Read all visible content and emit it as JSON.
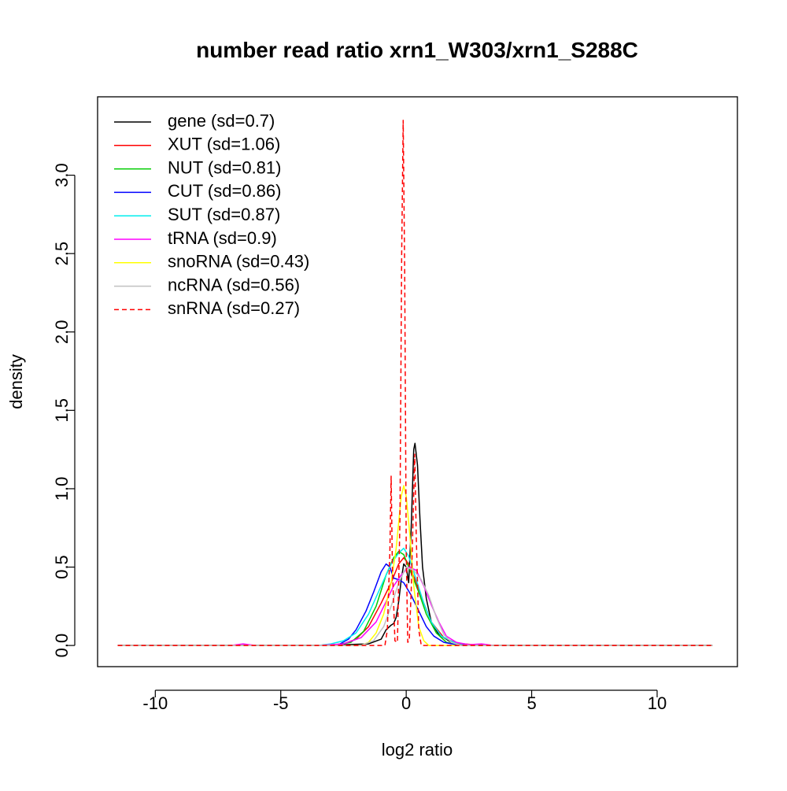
{
  "chart_data": {
    "type": "line",
    "title": "number read ratio xrn1_W303/xrn1_S288C",
    "xlabel": "log2 ratio",
    "ylabel": "density",
    "xlim": [
      -12.3,
      13.2
    ],
    "ylim": [
      -0.135,
      3.5
    ],
    "x_ticks": [
      -10,
      -5,
      0,
      5,
      10
    ],
    "x_tick_labels": [
      "-10",
      "-5",
      "0",
      "5",
      "10"
    ],
    "y_ticks": [
      0.0,
      0.5,
      1.0,
      1.5,
      2.0,
      2.5,
      3.0
    ],
    "y_tick_labels": [
      "0.0",
      "0.5",
      "1.0",
      "1.5",
      "2.0",
      "2.5",
      "3.0"
    ],
    "grid": false,
    "legend_position": "top-left",
    "series": [
      {
        "name": "gene (sd=0.7)",
        "color": "#000000",
        "dashed": false,
        "points": [
          [
            -11.5,
            0
          ],
          [
            -3.2,
            0
          ],
          [
            -2.5,
            0.005
          ],
          [
            -1.5,
            0.01
          ],
          [
            -1.0,
            0.04
          ],
          [
            -0.8,
            0.1
          ],
          [
            -0.6,
            0.13
          ],
          [
            -0.5,
            0.14
          ],
          [
            -0.4,
            0.18
          ],
          [
            -0.3,
            0.28
          ],
          [
            -0.2,
            0.42
          ],
          [
            -0.1,
            0.52
          ],
          [
            0.0,
            0.5
          ],
          [
            0.1,
            0.4
          ],
          [
            0.2,
            0.75
          ],
          [
            0.3,
            1.25
          ],
          [
            0.35,
            1.29
          ],
          [
            0.45,
            1.15
          ],
          [
            0.55,
            0.8
          ],
          [
            0.65,
            0.5
          ],
          [
            0.8,
            0.3
          ],
          [
            1.0,
            0.15
          ],
          [
            1.3,
            0.07
          ],
          [
            1.8,
            0.02
          ],
          [
            2.5,
            0.005
          ],
          [
            3.3,
            0
          ],
          [
            12.2,
            0
          ]
        ]
      },
      {
        "name": "XUT (sd=1.06)",
        "color": "#ff0000",
        "dashed": false,
        "points": [
          [
            -11.5,
            0
          ],
          [
            -3.5,
            0
          ],
          [
            -2.5,
            0.01
          ],
          [
            -2.0,
            0.04
          ],
          [
            -1.5,
            0.12
          ],
          [
            -1.0,
            0.27
          ],
          [
            -0.6,
            0.4
          ],
          [
            -0.3,
            0.52
          ],
          [
            -0.1,
            0.56
          ],
          [
            0.1,
            0.52
          ],
          [
            0.4,
            0.4
          ],
          [
            0.7,
            0.27
          ],
          [
            1.0,
            0.15
          ],
          [
            1.5,
            0.05
          ],
          [
            2.0,
            0.015
          ],
          [
            3.0,
            0
          ],
          [
            12.2,
            0
          ]
        ]
      },
      {
        "name": "NUT (sd=0.81)",
        "color": "#00cc00",
        "dashed": false,
        "points": [
          [
            -11.5,
            0
          ],
          [
            -3.0,
            0
          ],
          [
            -2.2,
            0.02
          ],
          [
            -1.7,
            0.09
          ],
          [
            -1.2,
            0.25
          ],
          [
            -0.8,
            0.45
          ],
          [
            -0.5,
            0.56
          ],
          [
            -0.3,
            0.6
          ],
          [
            -0.1,
            0.58
          ],
          [
            0.2,
            0.46
          ],
          [
            0.5,
            0.34
          ],
          [
            0.8,
            0.2
          ],
          [
            1.2,
            0.08
          ],
          [
            1.6,
            0.02
          ],
          [
            2.2,
            0
          ],
          [
            12.2,
            0
          ]
        ]
      },
      {
        "name": "CUT (sd=0.86)",
        "color": "#0000ff",
        "dashed": false,
        "points": [
          [
            -11.5,
            0
          ],
          [
            -3.2,
            0
          ],
          [
            -2.7,
            0.005
          ],
          [
            -2.3,
            0.04
          ],
          [
            -2.0,
            0.1
          ],
          [
            -1.6,
            0.22
          ],
          [
            -1.3,
            0.34
          ],
          [
            -1.0,
            0.47
          ],
          [
            -0.8,
            0.52
          ],
          [
            -0.65,
            0.5
          ],
          [
            -0.5,
            0.43
          ],
          [
            -0.3,
            0.42
          ],
          [
            -0.1,
            0.4
          ],
          [
            0.2,
            0.32
          ],
          [
            0.5,
            0.22
          ],
          [
            0.8,
            0.12
          ],
          [
            1.1,
            0.06
          ],
          [
            1.5,
            0.02
          ],
          [
            2.0,
            0.005
          ],
          [
            2.5,
            0
          ],
          [
            12.2,
            0
          ]
        ]
      },
      {
        "name": "SUT (sd=0.87)",
        "color": "#00eeee",
        "dashed": false,
        "points": [
          [
            -11.5,
            0
          ],
          [
            -3.5,
            0
          ],
          [
            -3.0,
            0.01
          ],
          [
            -2.5,
            0.03
          ],
          [
            -2.0,
            0.08
          ],
          [
            -1.5,
            0.2
          ],
          [
            -1.0,
            0.38
          ],
          [
            -0.6,
            0.52
          ],
          [
            -0.3,
            0.59
          ],
          [
            -0.1,
            0.62
          ],
          [
            0.1,
            0.57
          ],
          [
            0.4,
            0.42
          ],
          [
            0.7,
            0.27
          ],
          [
            1.0,
            0.15
          ],
          [
            1.4,
            0.06
          ],
          [
            1.9,
            0.02
          ],
          [
            2.5,
            0.005
          ],
          [
            3.0,
            0
          ],
          [
            12.2,
            0
          ]
        ]
      },
      {
        "name": "tRNA (sd=0.9)",
        "color": "#ff00ff",
        "dashed": false,
        "points": [
          [
            -11.5,
            0
          ],
          [
            -7.0,
            0
          ],
          [
            -6.5,
            0.01
          ],
          [
            -6.0,
            0
          ],
          [
            -3.5,
            0
          ],
          [
            -2.5,
            0.01
          ],
          [
            -1.8,
            0.05
          ],
          [
            -1.2,
            0.15
          ],
          [
            -0.8,
            0.28
          ],
          [
            -0.5,
            0.38
          ],
          [
            -0.2,
            0.45
          ],
          [
            0.1,
            0.5
          ],
          [
            0.4,
            0.48
          ],
          [
            0.7,
            0.38
          ],
          [
            1.0,
            0.26
          ],
          [
            1.3,
            0.15
          ],
          [
            1.6,
            0.06
          ],
          [
            2.0,
            0.02
          ],
          [
            2.5,
            0.005
          ],
          [
            3.0,
            0.01
          ],
          [
            3.5,
            0
          ],
          [
            12.2,
            0
          ]
        ]
      },
      {
        "name": "snoRNA (sd=0.43)",
        "color": "#ffff00",
        "dashed": false,
        "points": [
          [
            -11.5,
            0
          ],
          [
            -1.8,
            0
          ],
          [
            -1.5,
            0.02
          ],
          [
            -1.2,
            0.08
          ],
          [
            -0.9,
            0.2
          ],
          [
            -0.6,
            0.4
          ],
          [
            -0.4,
            0.62
          ],
          [
            -0.2,
            0.95
          ],
          [
            -0.1,
            1.02
          ],
          [
            0.0,
            0.95
          ],
          [
            0.15,
            0.7
          ],
          [
            0.3,
            0.38
          ],
          [
            0.5,
            0.12
          ],
          [
            0.7,
            0.03
          ],
          [
            0.9,
            0
          ],
          [
            12.2,
            0
          ]
        ]
      },
      {
        "name": "ncRNA (sd=0.56)",
        "color": "#c0c0c0",
        "dashed": false,
        "points": [
          [
            -11.5,
            0
          ],
          [
            -1.8,
            0
          ],
          [
            -1.3,
            0.03
          ],
          [
            -0.9,
            0.12
          ],
          [
            -0.6,
            0.25
          ],
          [
            -0.3,
            0.4
          ],
          [
            0.0,
            0.5
          ],
          [
            0.3,
            0.48
          ],
          [
            0.6,
            0.42
          ],
          [
            0.9,
            0.32
          ],
          [
            1.2,
            0.18
          ],
          [
            1.5,
            0.07
          ],
          [
            1.8,
            0.02
          ],
          [
            2.2,
            0
          ],
          [
            12.2,
            0
          ]
        ]
      },
      {
        "name": "snRNA (sd=0.27)",
        "color": "#ff0000",
        "dashed": true,
        "points": [
          [
            -11.5,
            0
          ],
          [
            -0.85,
            0
          ],
          [
            -0.75,
            0.1
          ],
          [
            -0.65,
            0.6
          ],
          [
            -0.6,
            1.08
          ],
          [
            -0.55,
            0.5
          ],
          [
            -0.45,
            0.03
          ],
          [
            -0.35,
            0.02
          ],
          [
            -0.25,
            0.8
          ],
          [
            -0.18,
            2.5
          ],
          [
            -0.12,
            3.35
          ],
          [
            -0.06,
            2.4
          ],
          [
            0.0,
            0.6
          ],
          [
            0.06,
            0.02
          ],
          [
            0.12,
            0.03
          ],
          [
            0.2,
            0.35
          ],
          [
            0.28,
            0.85
          ],
          [
            0.34,
            1.22
          ],
          [
            0.4,
            0.7
          ],
          [
            0.5,
            0.1
          ],
          [
            0.6,
            0
          ],
          [
            12.2,
            0
          ]
        ]
      }
    ]
  }
}
